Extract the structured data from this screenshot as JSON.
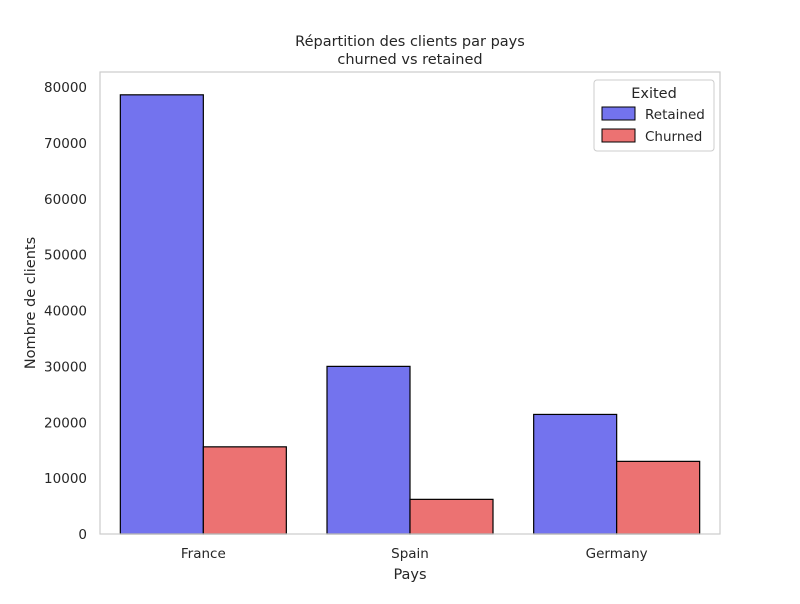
{
  "chart_data": {
    "type": "bar",
    "title": "Répartition des clients par pays",
    "subtitle": "churned vs retained",
    "xlabel": "Pays",
    "ylabel": "Nombre de clients",
    "categories": [
      "France",
      "Spain",
      "Germany"
    ],
    "series": [
      {
        "name": "Retained",
        "values": [
          78600,
          30000,
          21400
        ],
        "color": "#7373ee"
      },
      {
        "name": "Churned",
        "values": [
          15600,
          6200,
          13000
        ],
        "color": "#ec7272"
      }
    ],
    "ylim": [
      0,
      80000
    ],
    "yticks": [
      0,
      10000,
      20000,
      30000,
      40000,
      50000,
      60000,
      70000,
      80000
    ],
    "ytick_labels": [
      "0",
      "10000",
      "20000",
      "30000",
      "40000",
      "50000",
      "60000",
      "70000",
      "80000"
    ],
    "legend": {
      "title": "Exited",
      "placement": "top-right"
    },
    "grid": false
  }
}
